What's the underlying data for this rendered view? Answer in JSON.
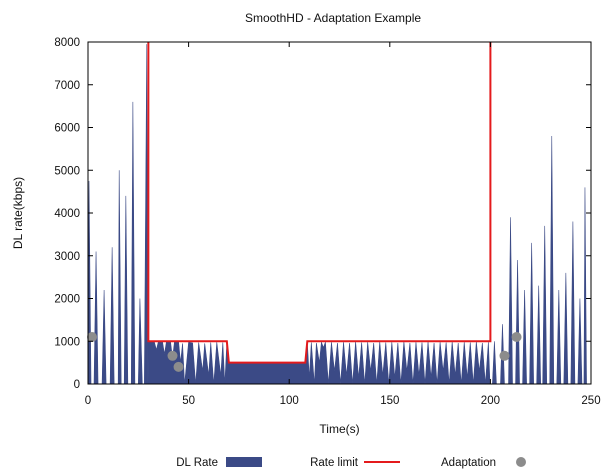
{
  "chart_data": {
    "type": "area",
    "title": "SmoothHD - Adaptation Example",
    "xlabel": "Time(s)",
    "ylabel": "DL rate(kbps)",
    "xlim": [
      0,
      250
    ],
    "ylim": [
      0,
      8000
    ],
    "x_ticks": [
      "0",
      "50",
      "100",
      "150",
      "200",
      "250"
    ],
    "y_ticks": [
      "0",
      "1000",
      "2000",
      "3000",
      "4000",
      "5000",
      "6000",
      "7000",
      "8000"
    ],
    "grid": false,
    "legend_position": "bottom",
    "series": [
      {
        "name": "DL Rate",
        "type": "area",
        "color": "#3b4a86",
        "points": [
          [
            0,
            0
          ],
          [
            0.5,
            4750
          ],
          [
            1.5,
            0
          ],
          [
            3,
            0
          ],
          [
            4,
            3100
          ],
          [
            5,
            0
          ],
          [
            7,
            0
          ],
          [
            8,
            2200
          ],
          [
            9,
            0
          ],
          [
            11,
            0
          ],
          [
            12,
            3200
          ],
          [
            13,
            0
          ],
          [
            15,
            0
          ],
          [
            15.5,
            5000
          ],
          [
            16.5,
            0
          ],
          [
            18,
            0
          ],
          [
            18.8,
            4400
          ],
          [
            19.8,
            0
          ],
          [
            21.5,
            0
          ],
          [
            22.3,
            6600
          ],
          [
            23.3,
            0
          ],
          [
            25,
            0
          ],
          [
            25.8,
            2000
          ],
          [
            27,
            0
          ],
          [
            28,
            0
          ],
          [
            29.2,
            7950
          ],
          [
            29.8,
            0
          ],
          [
            30,
            1000
          ],
          [
            33,
            980
          ],
          [
            34,
            800
          ],
          [
            35,
            1000
          ],
          [
            37,
            1000
          ],
          [
            38,
            700
          ],
          [
            39,
            1000
          ],
          [
            41,
            1000
          ],
          [
            42,
            600
          ],
          [
            43,
            1000
          ],
          [
            45,
            1000
          ],
          [
            46,
            500
          ],
          [
            47,
            950
          ],
          [
            48,
            0
          ],
          [
            50,
            980
          ],
          [
            52,
            960
          ],
          [
            53.5,
            0
          ],
          [
            55,
            970
          ],
          [
            57,
            300
          ],
          [
            58,
            950
          ],
          [
            60,
            200
          ],
          [
            61,
            970
          ],
          [
            62.5,
            0
          ],
          [
            64,
            980
          ],
          [
            66,
            200
          ],
          [
            67,
            970
          ],
          [
            68,
            0
          ],
          [
            69,
            980
          ],
          [
            70,
            500
          ],
          [
            108,
            500
          ],
          [
            109,
            980
          ],
          [
            110,
            150
          ],
          [
            111,
            970
          ],
          [
            112.5,
            0
          ],
          [
            113.5,
            960
          ],
          [
            115,
            500
          ],
          [
            116,
            980
          ],
          [
            117,
            850
          ],
          [
            118,
            980
          ],
          [
            119.5,
            0
          ],
          [
            121,
            980
          ],
          [
            122.5,
            300
          ],
          [
            124,
            960
          ],
          [
            125.5,
            0
          ],
          [
            127,
            980
          ],
          [
            128.5,
            200
          ],
          [
            130,
            960
          ],
          [
            131.5,
            0
          ],
          [
            133,
            990
          ],
          [
            134.5,
            150
          ],
          [
            136,
            970
          ],
          [
            137.5,
            0
          ],
          [
            139,
            980
          ],
          [
            140.5,
            300
          ],
          [
            142,
            960
          ],
          [
            143.5,
            0
          ],
          [
            145,
            990
          ],
          [
            146.5,
            200
          ],
          [
            148,
            970
          ],
          [
            149.5,
            0
          ],
          [
            151,
            980
          ],
          [
            152.5,
            150
          ],
          [
            154,
            960
          ],
          [
            155.5,
            0
          ],
          [
            157,
            990
          ],
          [
            158.5,
            300
          ],
          [
            160,
            960
          ],
          [
            161.5,
            0
          ],
          [
            163,
            980
          ],
          [
            164.5,
            200
          ],
          [
            166,
            970
          ],
          [
            167.5,
            0
          ],
          [
            169,
            990
          ],
          [
            170.5,
            150
          ],
          [
            172,
            960
          ],
          [
            173.5,
            0
          ],
          [
            175,
            980
          ],
          [
            176.5,
            300
          ],
          [
            178,
            970
          ],
          [
            179.5,
            0
          ],
          [
            181,
            990
          ],
          [
            182.5,
            200
          ],
          [
            184,
            960
          ],
          [
            185.5,
            0
          ],
          [
            187,
            980
          ],
          [
            188.5,
            150
          ],
          [
            190,
            970
          ],
          [
            191.5,
            0
          ],
          [
            193,
            990
          ],
          [
            194.5,
            300
          ],
          [
            196,
            960
          ],
          [
            197.5,
            0
          ],
          [
            199,
            980
          ],
          [
            199.8,
            0
          ],
          [
            201,
            0
          ],
          [
            202,
            1000
          ],
          [
            203,
            0
          ],
          [
            205,
            0
          ],
          [
            206,
            1400
          ],
          [
            207,
            0
          ],
          [
            209,
            0
          ],
          [
            210,
            3900
          ],
          [
            211,
            0
          ],
          [
            212.5,
            0
          ],
          [
            213.5,
            2900
          ],
          [
            214.5,
            0
          ],
          [
            216,
            0
          ],
          [
            217,
            2200
          ],
          [
            218,
            0
          ],
          [
            219.5,
            0
          ],
          [
            220.5,
            3300
          ],
          [
            221.5,
            0
          ],
          [
            223,
            0
          ],
          [
            224,
            2300
          ],
          [
            225,
            0
          ],
          [
            226,
            0
          ],
          [
            227,
            3700
          ],
          [
            228,
            0
          ],
          [
            229.5,
            0
          ],
          [
            230.5,
            5800
          ],
          [
            231.5,
            0
          ],
          [
            233,
            0
          ],
          [
            234,
            2200
          ],
          [
            235,
            0
          ],
          [
            236.5,
            0
          ],
          [
            237.5,
            2600
          ],
          [
            238.5,
            0
          ],
          [
            240,
            0
          ],
          [
            241,
            3800
          ],
          [
            242,
            0
          ],
          [
            243.5,
            0
          ],
          [
            244.5,
            2000
          ],
          [
            245.5,
            0
          ],
          [
            246.5,
            0
          ],
          [
            247,
            4600
          ],
          [
            247.8,
            0
          ]
        ]
      },
      {
        "name": "Rate limit",
        "type": "line",
        "color": "#e41a1c",
        "points": [
          [
            30,
            8000
          ],
          [
            30,
            1000
          ],
          [
            69,
            1000
          ],
          [
            70,
            500
          ],
          [
            108,
            500
          ],
          [
            109,
            1000
          ],
          [
            200,
            1000
          ],
          [
            200,
            8000
          ]
        ]
      },
      {
        "name": "Adaptation",
        "type": "scatter",
        "color": "#8c8c8c",
        "points": [
          [
            2,
            1100
          ],
          [
            42,
            660
          ],
          [
            45,
            400
          ],
          [
            207,
            660
          ],
          [
            213,
            1100
          ]
        ]
      }
    ]
  }
}
